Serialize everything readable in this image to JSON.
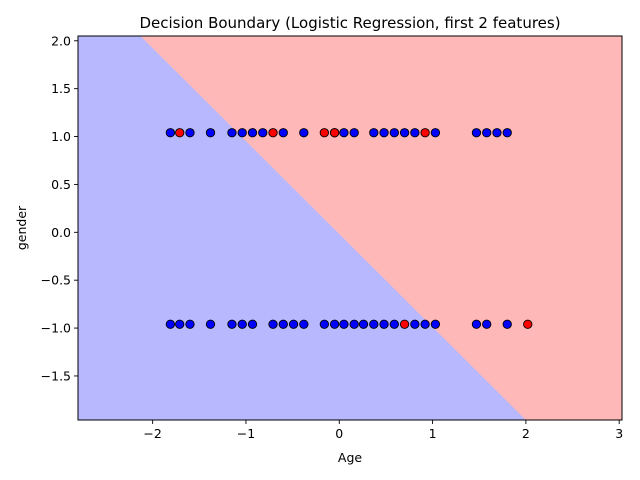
{
  "chart_data": {
    "type": "scatter",
    "title": "Decision Boundary (Logistic Regression, first 2 features)",
    "xlabel": "Age",
    "ylabel": "gender",
    "xlim": [
      -2.8,
      3.03
    ],
    "ylim": [
      -1.96,
      2.05
    ],
    "xticks": [
      -2,
      -1,
      0,
      1,
      2,
      3
    ],
    "xtick_labels": [
      "−2",
      "−1",
      "0",
      "1",
      "2",
      "3"
    ],
    "yticks": [
      -1.5,
      -1.0,
      -0.5,
      0.0,
      0.5,
      1.0,
      1.5,
      2.0
    ],
    "ytick_labels": [
      "−1.5",
      "−1.0",
      "−0.5",
      "0.0",
      "0.5",
      "1.0",
      "1.5",
      "2.0"
    ],
    "grid": false,
    "regions": [
      {
        "class": 0,
        "color": "#b8b8ff"
      },
      {
        "class": 1,
        "color": "#ffb8b8"
      }
    ],
    "decision_boundary": [
      [
        -2.13,
        2.05
      ],
      [
        2.0,
        -1.96
      ]
    ],
    "colors": {
      "class_0": "#0000ff",
      "class_1": "#ff0000",
      "edge": "#000000"
    },
    "series": [
      {
        "class": 0,
        "points": [
          [
            -1.81,
            1.04
          ],
          [
            -1.6,
            1.04
          ],
          [
            -1.38,
            1.04
          ],
          [
            -1.15,
            1.04
          ],
          [
            -1.04,
            1.04
          ],
          [
            -0.93,
            1.04
          ],
          [
            -0.82,
            1.04
          ],
          [
            -0.6,
            1.04
          ],
          [
            -0.38,
            1.04
          ],
          [
            -0.05,
            1.04
          ],
          [
            0.05,
            1.04
          ],
          [
            0.16,
            1.04
          ],
          [
            0.37,
            1.04
          ],
          [
            0.48,
            1.04
          ],
          [
            0.59,
            1.04
          ],
          [
            0.7,
            1.04
          ],
          [
            0.81,
            1.04
          ],
          [
            1.03,
            1.04
          ],
          [
            1.47,
            1.04
          ],
          [
            1.58,
            1.04
          ],
          [
            1.69,
            1.04
          ],
          [
            1.8,
            1.04
          ],
          [
            -1.81,
            -0.96
          ],
          [
            -1.71,
            -0.96
          ],
          [
            -1.6,
            -0.96
          ],
          [
            -1.38,
            -0.96
          ],
          [
            -1.15,
            -0.96
          ],
          [
            -1.04,
            -0.96
          ],
          [
            -0.93,
            -0.96
          ],
          [
            -0.71,
            -0.96
          ],
          [
            -0.6,
            -0.96
          ],
          [
            -0.49,
            -0.96
          ],
          [
            -0.38,
            -0.96
          ],
          [
            -0.16,
            -0.96
          ],
          [
            -0.05,
            -0.96
          ],
          [
            0.05,
            -0.96
          ],
          [
            0.16,
            -0.96
          ],
          [
            0.26,
            -0.96
          ],
          [
            0.37,
            -0.96
          ],
          [
            0.48,
            -0.96
          ],
          [
            0.59,
            -0.96
          ],
          [
            0.81,
            -0.96
          ],
          [
            0.92,
            -0.96
          ],
          [
            1.03,
            -0.96
          ],
          [
            1.47,
            -0.96
          ],
          [
            1.58,
            -0.96
          ],
          [
            1.8,
            -0.96
          ]
        ]
      },
      {
        "class": 1,
        "points": [
          [
            -1.71,
            1.04
          ],
          [
            -0.71,
            1.04
          ],
          [
            -0.16,
            1.04
          ],
          [
            -0.05,
            1.04
          ],
          [
            0.92,
            1.04
          ],
          [
            0.7,
            -0.96
          ],
          [
            2.02,
            -0.96
          ]
        ]
      }
    ]
  }
}
